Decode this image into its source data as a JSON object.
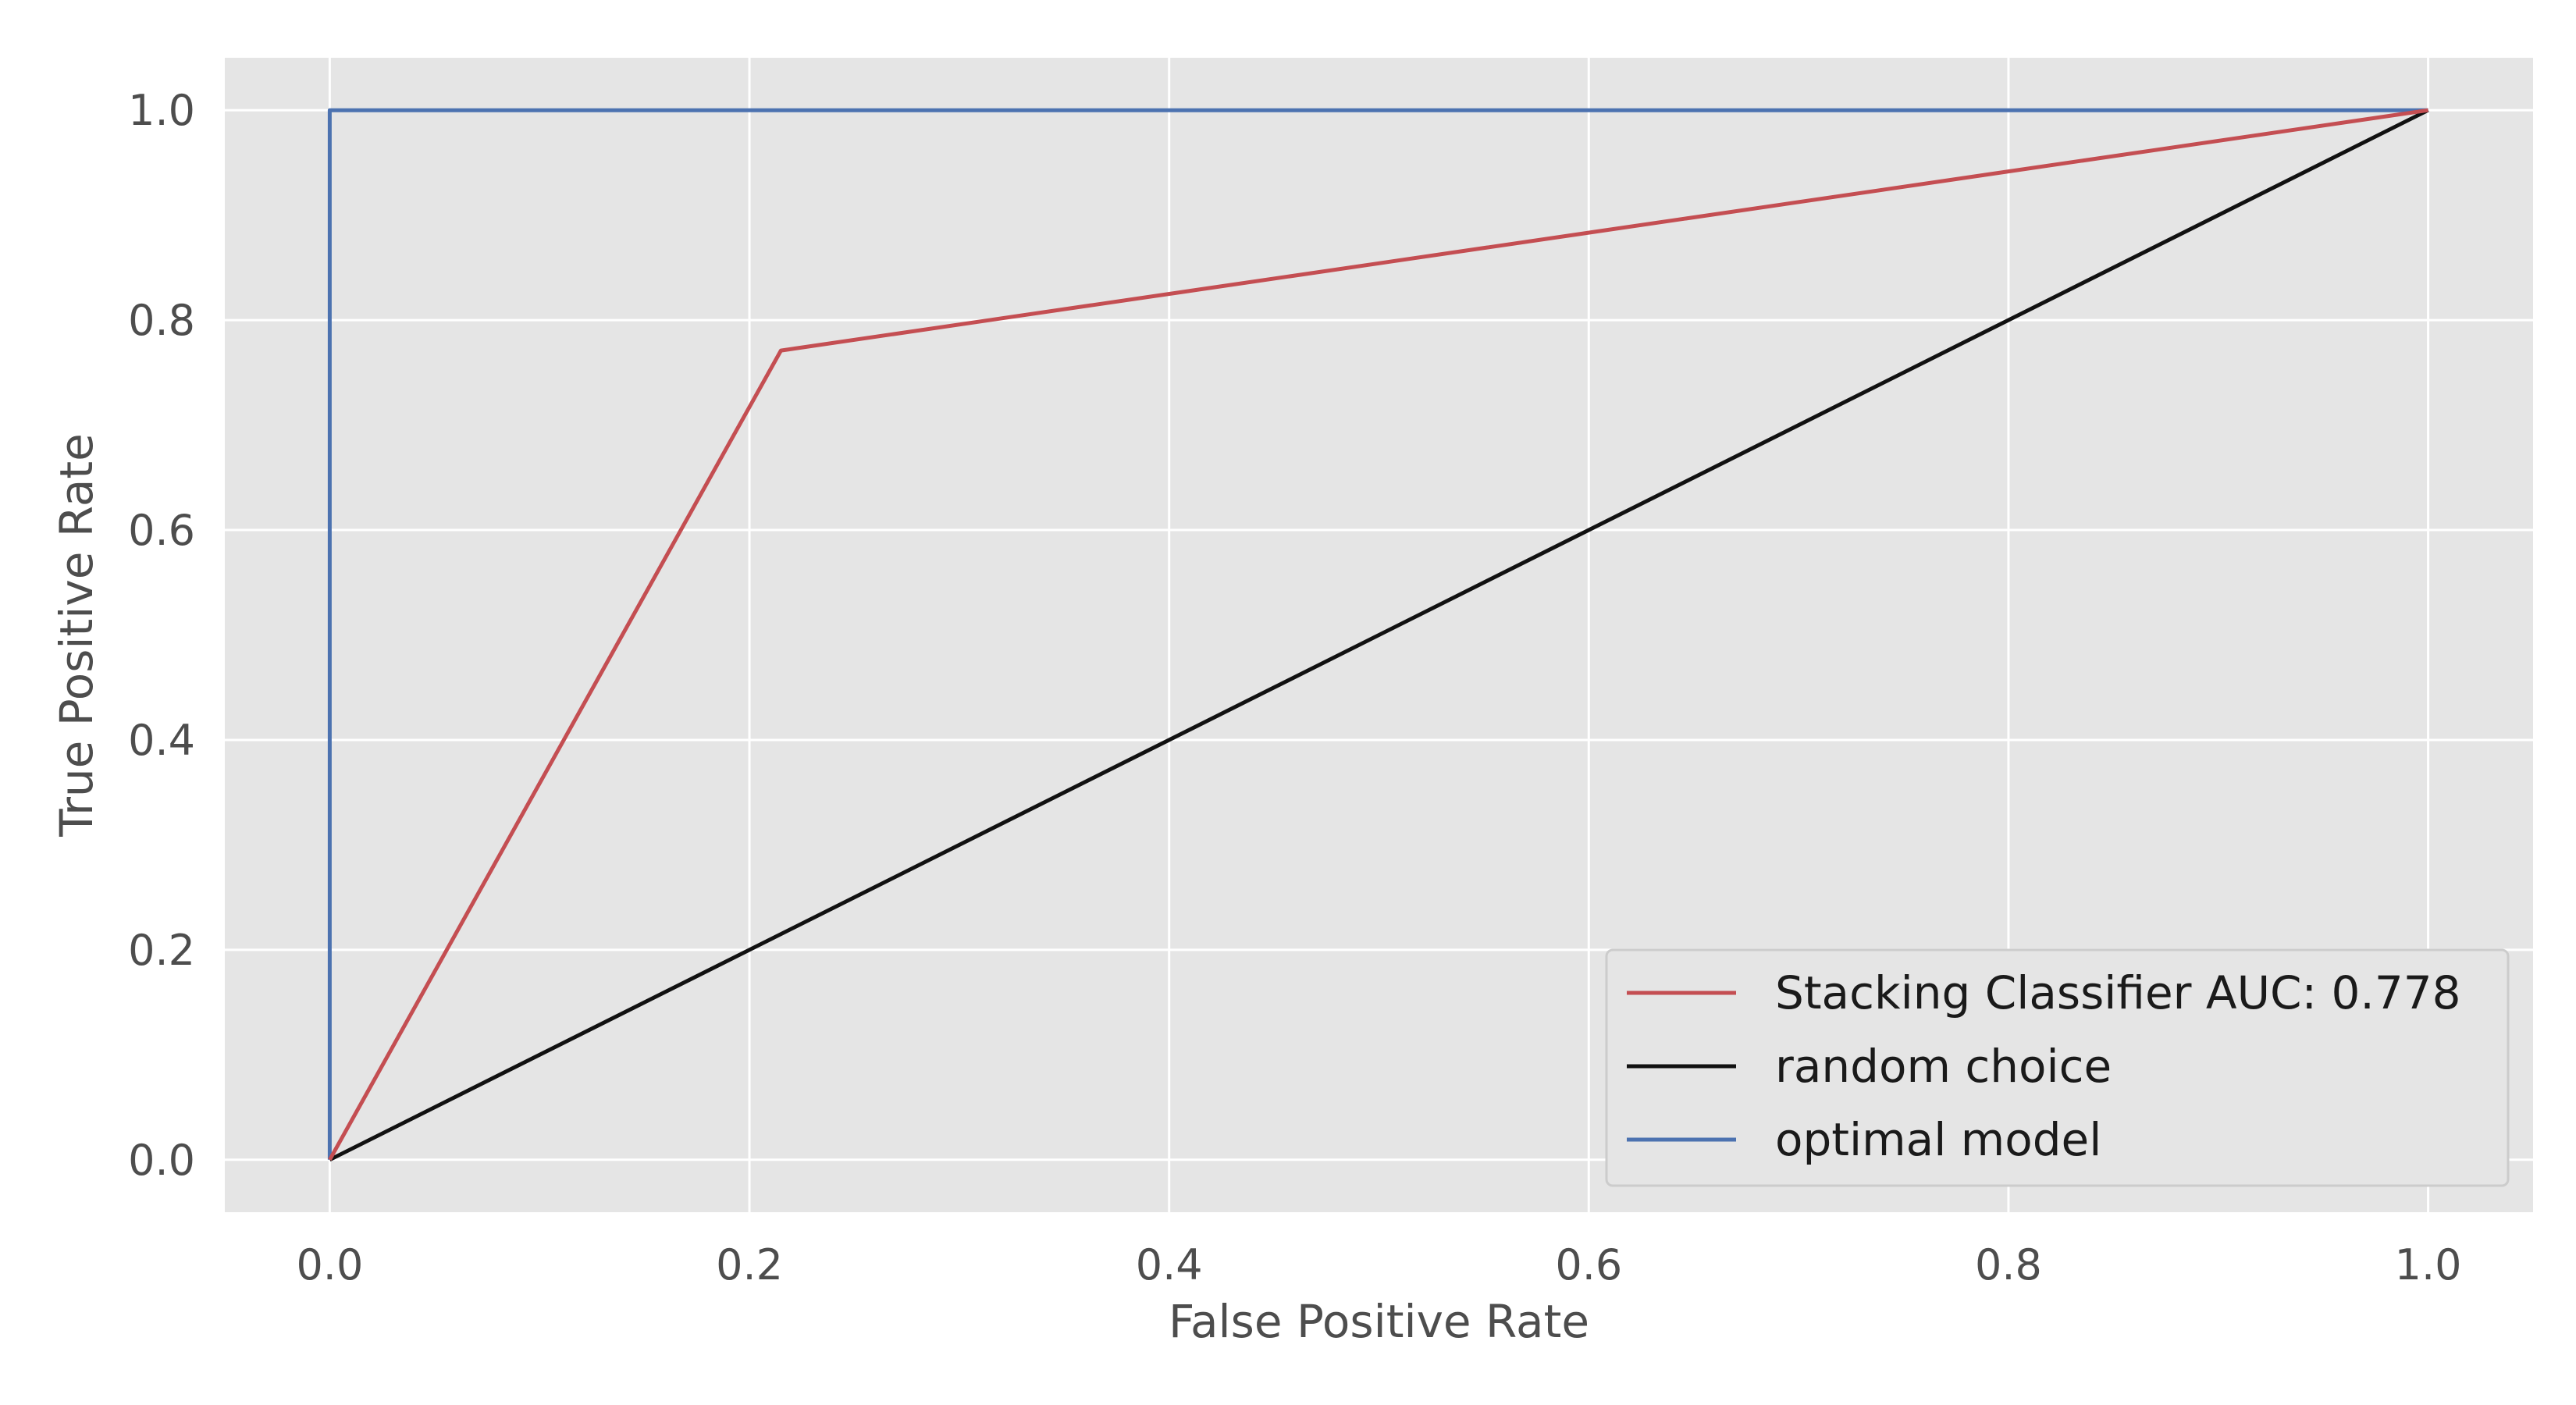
{
  "chart_data": {
    "type": "line",
    "title": "",
    "xlabel": "False Positive Rate",
    "ylabel": "True Positive Rate",
    "xlim": [
      -0.05,
      1.05
    ],
    "ylim": [
      -0.05,
      1.05
    ],
    "xticks": [
      0.0,
      0.2,
      0.4,
      0.6,
      0.8,
      1.0
    ],
    "yticks": [
      0.0,
      0.2,
      0.4,
      0.6,
      0.8,
      1.0
    ],
    "xtick_labels": [
      "0.0",
      "0.2",
      "0.4",
      "0.6",
      "0.8",
      "1.0"
    ],
    "ytick_labels": [
      "0.0",
      "0.2",
      "0.4",
      "0.6",
      "0.8",
      "1.0"
    ],
    "grid": true,
    "background": "#e5e5e5",
    "grid_color": "#ffffff",
    "legend_position": "lower-right",
    "series": [
      {
        "name": "Stacking Classifier AUC: 0.778",
        "color": "#c44e52",
        "x": [
          0.0,
          0.215,
          1.0
        ],
        "y": [
          0.0,
          0.771,
          1.0
        ]
      },
      {
        "name": "random choice",
        "color": "#111111",
        "x": [
          0.0,
          1.0
        ],
        "y": [
          0.0,
          1.0
        ]
      },
      {
        "name": "optimal model",
        "color": "#4c72b0",
        "x": [
          0.0,
          0.0,
          1.0
        ],
        "y": [
          0.0,
          1.0,
          1.0
        ]
      }
    ]
  }
}
